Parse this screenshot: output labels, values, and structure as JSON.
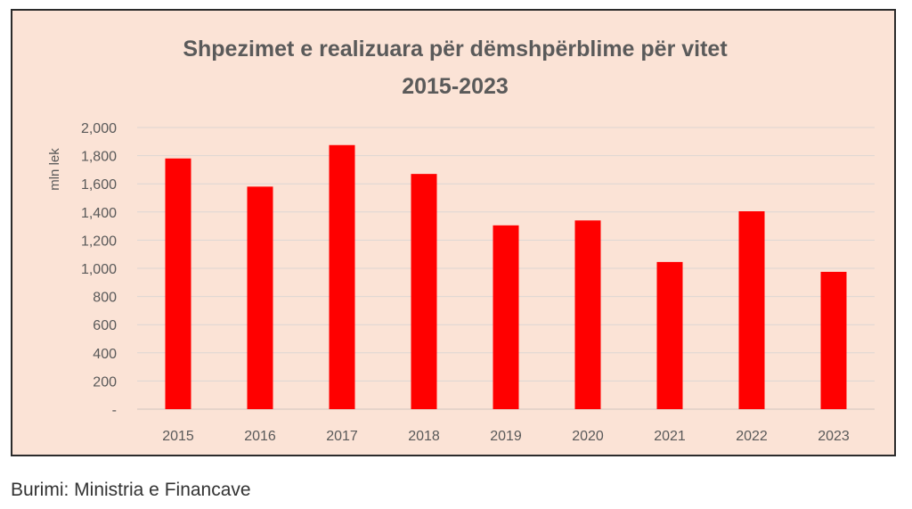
{
  "chart_data": {
    "type": "bar",
    "title": [
      "Shpezimet e realizuara për dëmshpërblime për vitet",
      "2015-2023"
    ],
    "ylabel": "mln lek",
    "xlabel": "",
    "categories": [
      "2015",
      "2016",
      "2017",
      "2018",
      "2019",
      "2020",
      "2021",
      "2022",
      "2023"
    ],
    "values": [
      1780,
      1580,
      1875,
      1670,
      1305,
      1340,
      1045,
      1405,
      975
    ],
    "ylim": [
      0,
      2000
    ],
    "yticks": [
      0,
      200,
      400,
      600,
      800,
      1000,
      1200,
      1400,
      1600,
      1800,
      2000
    ],
    "ytick_labels": [
      "-",
      "200",
      "400",
      "600",
      "800",
      "1,000",
      "1,200",
      "1,400",
      "1,600",
      "1,800",
      "2,000"
    ],
    "grid": true,
    "legend": false,
    "bar_color": "#ff0000",
    "background_color": "#fbe3d6"
  },
  "source": "Burimi: Ministria e Financave"
}
